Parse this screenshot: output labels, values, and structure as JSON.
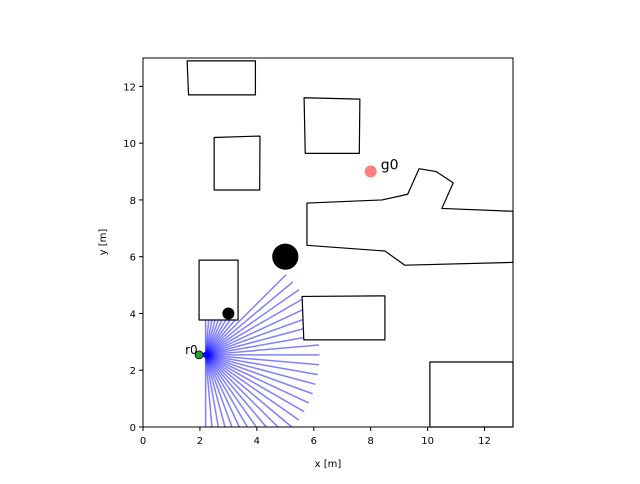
{
  "chart_data": {
    "type": "scatter",
    "xlabel": "x [m]",
    "ylabel": "y [m]",
    "xlim": [
      0,
      13
    ],
    "ylim": [
      0,
      13
    ],
    "xticks": [
      0,
      2,
      4,
      6,
      8,
      10,
      12
    ],
    "yticks": [
      0,
      2,
      4,
      6,
      8,
      10,
      12
    ],
    "obstacle_color": "#000000",
    "obstacles": [
      [
        [
          1.55,
          12.9
        ],
        [
          3.95,
          12.9
        ],
        [
          3.95,
          11.7
        ],
        [
          1.6,
          11.7
        ]
      ],
      [
        [
          5.66,
          11.6
        ],
        [
          7.62,
          11.55
        ],
        [
          7.6,
          9.64
        ],
        [
          5.7,
          9.64
        ]
      ],
      [
        [
          2.5,
          10.2
        ],
        [
          4.11,
          10.25
        ],
        [
          4.1,
          8.35
        ],
        [
          2.5,
          8.35
        ]
      ],
      [
        [
          5.76,
          7.89
        ],
        [
          8.4,
          8.0
        ],
        [
          9.3,
          8.2
        ],
        [
          9.7,
          9.1
        ],
        [
          10.3,
          9.0
        ],
        [
          10.9,
          8.6
        ],
        [
          10.5,
          7.7
        ],
        [
          13,
          7.6
        ],
        [
          13,
          5.8
        ],
        [
          9.2,
          5.7
        ],
        [
          8.5,
          6.2
        ],
        [
          5.76,
          6.4
        ]
      ],
      [
        [
          1.97,
          5.88
        ],
        [
          3.34,
          5.88
        ],
        [
          3.34,
          3.77
        ],
        [
          1.97,
          3.77
        ]
      ],
      [
        [
          5.59,
          4.6
        ],
        [
          8.5,
          4.62
        ],
        [
          8.5,
          3.07
        ],
        [
          5.65,
          3.07
        ]
      ],
      [
        [
          10.08,
          2.29
        ],
        [
          13,
          2.29
        ],
        [
          13,
          0
        ],
        [
          10.08,
          0
        ]
      ]
    ],
    "circles": [
      {
        "x": 5,
        "y": 6,
        "r": 0.46
      },
      {
        "x": 3,
        "y": 4,
        "r": 0.21
      }
    ],
    "goal": {
      "label": "g0",
      "x": 8,
      "y": 9,
      "color": "#ff7f7f"
    },
    "robot": {
      "label": "r0",
      "x": 1.97,
      "y": 2.54,
      "color": "#2ca02c"
    },
    "lidar": {
      "x": 2.2,
      "y": 2.54,
      "range": 4,
      "angle_min": -90,
      "angle_max": 90,
      "count": 37,
      "color": "#0000ff"
    }
  }
}
